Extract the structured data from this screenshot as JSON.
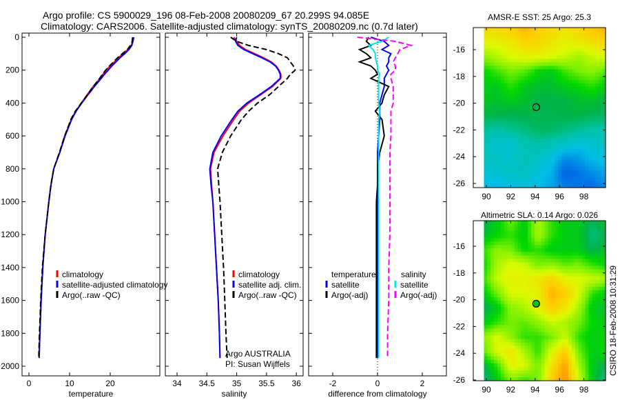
{
  "title": {
    "line1": "Argo profile: CS 5900029_196 08-Feb-2008 20080209_67 20.299S 94.085E",
    "line2": "Climatology: CARS2006. Satellite-adjusted climatology: synTS_20080209.nc (0.7d later)"
  },
  "footer_stamp": "CSIRO 18-Feb-2008 10:31:29",
  "colors": {
    "climatology": "#ff0000",
    "satellite": "#0000ff",
    "argo": "#000000",
    "salinity_satellite": "#00e5ee",
    "salinity_argo": "#ff00ff"
  },
  "chart_data": [
    {
      "type": "line",
      "xlabel": "temperature",
      "ylabel": "",
      "xlim": [
        -1.5,
        32
      ],
      "ylim": [
        2000,
        0
      ],
      "xticks": [
        "0",
        "10",
        "20"
      ],
      "xtick_values": [
        0,
        10,
        20
      ],
      "yticks": [
        "0",
        "200",
        "400",
        "600",
        "800",
        "1000",
        "1200",
        "1400",
        "1600",
        "1800",
        "2000"
      ],
      "ytick_values": [
        0,
        200,
        400,
        600,
        800,
        1000,
        1200,
        1400,
        1600,
        1800,
        2000
      ],
      "depth": [
        0,
        25,
        50,
        75,
        100,
        125,
        150,
        175,
        200,
        225,
        250,
        300,
        350,
        400,
        450,
        500,
        600,
        700,
        800,
        900,
        1000,
        1200,
        1400,
        1600,
        1800,
        1950
      ],
      "legend": [
        "climatology",
        "satellite-adjusted climatology",
        "Argo(..raw -QC)"
      ],
      "series": [
        {
          "name": "climatology",
          "color": "#ff0000",
          "dash": false,
          "values": [
            25.6,
            25.5,
            25.2,
            24.3,
            23.2,
            22,
            21,
            20,
            19,
            18.2,
            17.5,
            15.8,
            14.3,
            12.9,
            11.5,
            10.4,
            8.8,
            7.6,
            6.1,
            5.4,
            4.9,
            4.0,
            3.4,
            3.0,
            2.7,
            2.5
          ]
        },
        {
          "name": "satellite-adjusted climatology",
          "color": "#0000ff",
          "dash": false,
          "values": [
            25.8,
            25.6,
            25.3,
            24.6,
            23.6,
            22.4,
            21.4,
            20.4,
            19.5,
            18.6,
            17.8,
            16.1,
            14.5,
            13,
            11.6,
            10.5,
            8.9,
            7.6,
            6.1,
            5.4,
            4.9,
            4.0,
            3.4,
            3.0,
            2.7,
            2.5
          ]
        },
        {
          "name": "Argo(..raw -QC)",
          "color": "#000000",
          "dash": true,
          "values": [
            25.5,
            25.4,
            25.0,
            24.2,
            23.0,
            21.8,
            20.8,
            19.8,
            18.9,
            18.1,
            17.4,
            15.8,
            14.4,
            12.9,
            11.4,
            10.3,
            8.8,
            7.5,
            6.1,
            5.4,
            4.9,
            4.0,
            3.3,
            2.9,
            2.6,
            2.4
          ]
        }
      ]
    },
    {
      "type": "line",
      "xlabel": "salinity",
      "xticks": [
        "34",
        "34.5",
        "35",
        "35.5",
        "36"
      ],
      "xtick_values": [
        34,
        34.5,
        35,
        35.5,
        36
      ],
      "ylim": [
        2000,
        0
      ],
      "depth": [
        0,
        25,
        50,
        75,
        100,
        125,
        150,
        175,
        200,
        225,
        250,
        300,
        350,
        400,
        450,
        500,
        600,
        700,
        800,
        900,
        1000,
        1200,
        1400,
        1600,
        1800,
        1950
      ],
      "legend": [
        "climatology",
        "satellite adj. clim.",
        "Argo(..raw -QC)"
      ],
      "annotations": [
        "Argo AUSTRALIA",
        "PI: Susan Wijffels"
      ],
      "series": [
        {
          "name": "climatology",
          "color": "#ff0000",
          "dash": false,
          "values": [
            34.95,
            35.0,
            35.05,
            35.15,
            35.3,
            35.45,
            35.58,
            35.66,
            35.71,
            35.74,
            35.74,
            35.6,
            35.4,
            35.2,
            35.05,
            34.95,
            34.77,
            34.62,
            34.56,
            34.58,
            34.6,
            34.63,
            34.66,
            34.69,
            34.71,
            34.72
          ]
        },
        {
          "name": "satellite adj. clim.",
          "color": "#0000ff",
          "dash": false,
          "values": [
            35.0,
            34.98,
            35.02,
            35.12,
            35.27,
            35.42,
            35.56,
            35.65,
            35.7,
            35.73,
            35.73,
            35.58,
            35.38,
            35.17,
            35.02,
            34.92,
            34.74,
            34.6,
            34.55,
            34.57,
            34.6,
            34.63,
            34.66,
            34.69,
            34.71,
            34.72
          ]
        },
        {
          "name": "Argo(..raw -QC)",
          "color": "#000000",
          "dash": true,
          "values": [
            34.9,
            35.0,
            35.2,
            35.5,
            35.7,
            35.85,
            35.9,
            35.95,
            35.98,
            35.9,
            35.85,
            35.7,
            35.55,
            35.35,
            35.2,
            35.08,
            34.9,
            34.76,
            34.68,
            34.7,
            34.72,
            34.75,
            34.78,
            34.8,
            34.82,
            34.84
          ]
        }
      ]
    },
    {
      "type": "line",
      "xlabel": "difference from climatology",
      "xticks": [
        "-2",
        "0",
        "2"
      ],
      "xtick_values": [
        -2,
        0,
        2
      ],
      "ylim": [
        2000,
        0
      ],
      "depth": [
        0,
        25,
        50,
        75,
        100,
        125,
        150,
        175,
        200,
        225,
        250,
        300,
        350,
        400,
        450,
        500,
        600,
        700,
        800,
        900,
        1000,
        1200,
        1400,
        1600,
        1800,
        1950
      ],
      "legend_headers": [
        "temperature",
        "salinity"
      ],
      "legend": [
        "satellite",
        "Argo(-adj)",
        "satellite",
        "Argo(-adj)"
      ],
      "series": [
        {
          "name": "temperature satellite",
          "color": "#0000ff",
          "dash": false,
          "values": [
            -0.3,
            0.3,
            0.5,
            0.2,
            0.6,
            0.5,
            0.5,
            0.4,
            0.5,
            0.4,
            0.3,
            0.3,
            0.2,
            0.1,
            0.1,
            0.1,
            0.05,
            0,
            0,
            0,
            0,
            0,
            0,
            0,
            0,
            0
          ]
        },
        {
          "name": "temperature Argo(-adj)",
          "color": "#000000",
          "dash": false,
          "values": [
            -0.4,
            -0.5,
            -0.3,
            -0.8,
            -0.5,
            -0.3,
            -0.8,
            -0.3,
            -0.1,
            0,
            -0.3,
            0.5,
            0.3,
            0.2,
            -0.1,
            0.2,
            0.3,
            0.1,
            0,
            0,
            -0.05,
            -0.05,
            -0.05,
            -0.05,
            -0.05,
            -0.05
          ]
        },
        {
          "name": "salinity satellite",
          "color": "#00e5ee",
          "dash": false,
          "values": [
            0.5,
            0.2,
            -0.4,
            -0.2,
            -0.1,
            -0.1,
            -0.05,
            0,
            0,
            0.1,
            0.05,
            0.05,
            0.05,
            0.05,
            0.1,
            0.05,
            0.05,
            0.05,
            0.05,
            0.05,
            0.05,
            0.05,
            0.05,
            0.05,
            0.05,
            0.05
          ]
        },
        {
          "name": "salinity Argo(-adj)",
          "color": "#ff00ff",
          "dash": true,
          "values": [
            -0.9,
            0.8,
            1.5,
            1.0,
            0.9,
            0.8,
            0.7,
            0.8,
            0.8,
            0.6,
            0.6,
            0.7,
            0.7,
            0.7,
            0.6,
            0.6,
            0.6,
            0.55,
            0.55,
            0.55,
            0.55,
            0.55,
            0.5,
            0.5,
            0.45,
            0.45
          ]
        }
      ]
    },
    {
      "type": "heatmap",
      "title": "AMSR-E SST: 25 Argo: 25.3",
      "xticks": [
        "90",
        "92",
        "94",
        "96",
        "98"
      ],
      "xtick_values": [
        90,
        92,
        94,
        96,
        98
      ],
      "yticks": [
        "-16",
        "-18",
        "-20",
        "-22",
        "-24",
        "-26"
      ],
      "ytick_values": [
        -16,
        -18,
        -20,
        -22,
        -24,
        -26
      ],
      "lon_range": [
        89.8,
        99.8
      ],
      "lat_range": [
        -14.4,
        -26.3
      ],
      "marker": {
        "lon": 94.085,
        "lat": -20.299,
        "filled": false
      },
      "color_levels_normalized": [
        [
          0.78,
          0.78,
          0.8,
          0.85,
          0.8,
          0.78,
          0.75,
          0.78,
          0.82,
          0.85
        ],
        [
          0.72,
          0.72,
          0.74,
          0.78,
          0.78,
          0.75,
          0.72,
          0.74,
          0.76,
          0.78
        ],
        [
          0.62,
          0.66,
          0.7,
          0.72,
          0.72,
          0.7,
          0.68,
          0.64,
          0.68,
          0.7
        ],
        [
          0.52,
          0.56,
          0.6,
          0.58,
          0.52,
          0.5,
          0.56,
          0.6,
          0.62,
          0.58
        ],
        [
          0.5,
          0.5,
          0.55,
          0.5,
          0.48,
          0.48,
          0.5,
          0.52,
          0.55,
          0.5
        ],
        [
          0.5,
          0.48,
          0.5,
          0.48,
          0.46,
          0.46,
          0.46,
          0.48,
          0.48,
          0.46
        ],
        [
          0.46,
          0.46,
          0.45,
          0.46,
          0.45,
          0.45,
          0.46,
          0.46,
          0.45,
          0.44
        ],
        [
          0.4,
          0.38,
          0.4,
          0.42,
          0.44,
          0.44,
          0.42,
          0.4,
          0.38,
          0.38
        ],
        [
          0.35,
          0.32,
          0.32,
          0.36,
          0.38,
          0.36,
          0.34,
          0.3,
          0.32,
          0.34
        ],
        [
          0.36,
          0.34,
          0.32,
          0.36,
          0.34,
          0.3,
          0.2,
          0.22,
          0.28,
          0.3
        ],
        [
          0.3,
          0.32,
          0.34,
          0.34,
          0.3,
          0.26,
          0.12,
          0.16,
          0.2,
          0.24
        ],
        [
          0.28,
          0.26,
          0.28,
          0.3,
          0.28,
          0.24,
          0.18,
          0.16,
          0.14,
          0.2
        ]
      ]
    },
    {
      "type": "heatmap",
      "title": "Altimetric SLA: 0.14 Argo: 0.026",
      "xticks": [
        "90",
        "92",
        "94",
        "96",
        "98"
      ],
      "xtick_values": [
        90,
        92,
        94,
        96,
        98
      ],
      "yticks": [
        "-16",
        "-18",
        "-20",
        "-22",
        "-24",
        "-26"
      ],
      "ytick_values": [
        -16,
        -18,
        -20,
        -22,
        -24,
        -26
      ],
      "lon_range": [
        89.8,
        99.8
      ],
      "lat_range": [
        -14.4,
        -26.3
      ],
      "marker": {
        "lon": 94.085,
        "lat": -20.299,
        "filled": true
      },
      "color_levels_normalized": [
        [
          0.45,
          0.5,
          0.6,
          0.5,
          0.65,
          0.55,
          0.5,
          0.5,
          0.45,
          0.48
        ],
        [
          0.48,
          0.52,
          0.55,
          0.5,
          0.65,
          0.55,
          0.5,
          0.5,
          0.42,
          0.45
        ],
        [
          0.55,
          0.62,
          0.6,
          0.52,
          0.55,
          0.5,
          0.5,
          0.5,
          0.45,
          0.48
        ],
        [
          0.52,
          0.65,
          0.7,
          0.68,
          0.6,
          0.62,
          0.58,
          0.6,
          0.55,
          0.52
        ],
        [
          0.55,
          0.68,
          0.72,
          0.72,
          0.75,
          0.78,
          0.72,
          0.7,
          0.68,
          0.65
        ],
        [
          0.5,
          0.6,
          0.7,
          0.7,
          0.72,
          0.85,
          0.8,
          0.7,
          0.55,
          0.5
        ],
        [
          0.45,
          0.5,
          0.62,
          0.65,
          0.72,
          0.8,
          0.75,
          0.65,
          0.5,
          0.48
        ],
        [
          0.5,
          0.55,
          0.6,
          0.58,
          0.62,
          0.68,
          0.65,
          0.6,
          0.52,
          0.5
        ],
        [
          0.62,
          0.7,
          0.62,
          0.55,
          0.55,
          0.6,
          0.68,
          0.55,
          0.5,
          0.52
        ],
        [
          0.58,
          0.7,
          0.75,
          0.65,
          0.55,
          0.7,
          0.8,
          0.6,
          0.5,
          0.52
        ],
        [
          0.45,
          0.55,
          0.72,
          0.7,
          0.6,
          0.75,
          0.88,
          0.65,
          0.5,
          0.45
        ],
        [
          0.42,
          0.5,
          0.6,
          0.55,
          0.6,
          0.8,
          0.9,
          0.7,
          0.5,
          0.4
        ]
      ]
    }
  ]
}
